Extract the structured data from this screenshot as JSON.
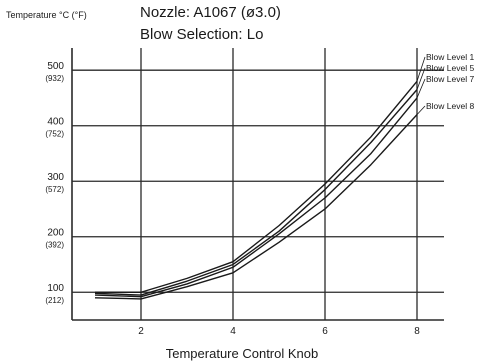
{
  "chart_data": {
    "type": "line",
    "title": "Nozzle: A1067 (ø3.0)",
    "subtitle": "Blow Selection: Lo",
    "ylabel": "Temperature °C (°F)",
    "xlabel": "Temperature Control Knob",
    "xlim": [
      0.5,
      8.5
    ],
    "ylim": [
      50,
      540
    ],
    "grid": true,
    "x_ticks": [
      2,
      4,
      6,
      8
    ],
    "x_tick_labels": [
      "2",
      "4",
      "6",
      "8"
    ],
    "y_ticks": [
      {
        "value": 100,
        "label": "100",
        "sub": "(212)"
      },
      {
        "value": 200,
        "label": "200",
        "sub": "(392)"
      },
      {
        "value": 300,
        "label": "300",
        "sub": "(572)"
      },
      {
        "value": 400,
        "label": "400",
        "sub": "(752)"
      },
      {
        "value": 500,
        "label": "500",
        "sub": "(932)"
      }
    ],
    "x": [
      1,
      2,
      3,
      4,
      5,
      6,
      7,
      8
    ],
    "series": [
      {
        "name": "Blow Level 1",
        "values": [
          100,
          100,
          125,
          155,
          220,
          295,
          380,
          480
        ]
      },
      {
        "name": "Blow Level 5",
        "values": [
          98,
          95,
          120,
          150,
          210,
          285,
          370,
          465
        ]
      },
      {
        "name": "Blow Level 7",
        "values": [
          95,
          92,
          115,
          145,
          205,
          270,
          350,
          450
        ]
      },
      {
        "name": "Blow Level 8",
        "values": [
          90,
          88,
          110,
          135,
          190,
          250,
          330,
          420
        ]
      }
    ],
    "colors": {
      "line": "#1a1a1a",
      "grid": "#2a2a2a"
    }
  }
}
